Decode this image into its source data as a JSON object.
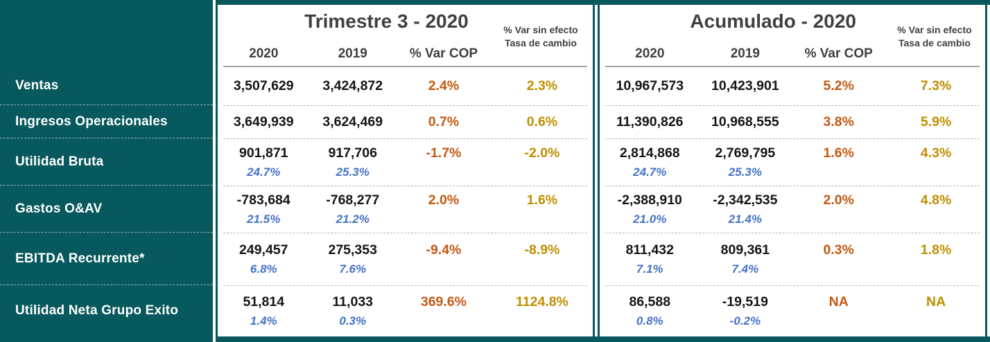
{
  "colors": {
    "teal": "#07595D",
    "var_cop_orange": "#C45911",
    "var_fx_gold": "#BF8F00",
    "margin_blue": "#4472C4",
    "header_gray": "#3F3F3F",
    "rule_gray": "#A6A6A6"
  },
  "sidebar": {
    "rows": [
      "Ventas",
      "Ingresos Operacionales",
      "Utilidad Bruta",
      "Gastos O&AV",
      "EBITDA Recurrente*",
      "Utilidad Neta Grupo Exito"
    ]
  },
  "sections": [
    {
      "title": "Trimestre 3 - 2020",
      "headers": {
        "year_a": "2020",
        "year_b": "2019",
        "var_cop": "% Var COP",
        "var_fx_line1": "% Var sin efecto",
        "var_fx_line2": "Tasa de cambio"
      },
      "rows": [
        {
          "y2020": "3,507,629",
          "y2019": "3,424,872",
          "var_cop": "2.4%",
          "var_fx": "2.3%"
        },
        {
          "y2020": "3,649,939",
          "y2019": "3,624,469",
          "var_cop": "0.7%",
          "var_fx": "0.6%"
        },
        {
          "y2020": "901,871",
          "y2019": "917,706",
          "var_cop": "-1.7%",
          "var_fx": "-2.0%",
          "m2020": "24.7%",
          "m2019": "25.3%"
        },
        {
          "y2020": "-783,684",
          "y2019": "-768,277",
          "var_cop": "2.0%",
          "var_fx": "1.6%",
          "m2020": "21.5%",
          "m2019": "21.2%"
        },
        {
          "y2020": "249,457",
          "y2019": "275,353",
          "var_cop": "-9.4%",
          "var_fx": "-8.9%",
          "m2020": "6.8%",
          "m2019": "7.6%"
        },
        {
          "y2020": "51,814",
          "y2019": "11,033",
          "var_cop": "369.6%",
          "var_fx": "1124.8%",
          "m2020": "1.4%",
          "m2019": "0.3%"
        }
      ]
    },
    {
      "title": "Acumulado - 2020",
      "headers": {
        "year_a": "2020",
        "year_b": "2019",
        "var_cop": "% Var COP",
        "var_fx_line1": "% Var sin efecto",
        "var_fx_line2": "Tasa de cambio"
      },
      "rows": [
        {
          "y2020": "10,967,573",
          "y2019": "10,423,901",
          "var_cop": "5.2%",
          "var_fx": "7.3%"
        },
        {
          "y2020": "11,390,826",
          "y2019": "10,968,555",
          "var_cop": "3.8%",
          "var_fx": "5.9%"
        },
        {
          "y2020": "2,814,868",
          "y2019": "2,769,795",
          "var_cop": "1.6%",
          "var_fx": "4.3%",
          "m2020": "24.7%",
          "m2019": "25.3%"
        },
        {
          "y2020": "-2,388,910",
          "y2019": "-2,342,535",
          "var_cop": "2.0%",
          "var_fx": "4.8%",
          "m2020": "21.0%",
          "m2019": "21.4%"
        },
        {
          "y2020": "811,432",
          "y2019": "809,361",
          "var_cop": "0.3%",
          "var_fx": "1.8%",
          "m2020": "7.1%",
          "m2019": "7.4%"
        },
        {
          "y2020": "86,588",
          "y2019": "-19,519",
          "var_cop": "NA",
          "var_fx": "NA",
          "m2020": "0.8%",
          "m2019": "-0.2%"
        }
      ]
    }
  ]
}
